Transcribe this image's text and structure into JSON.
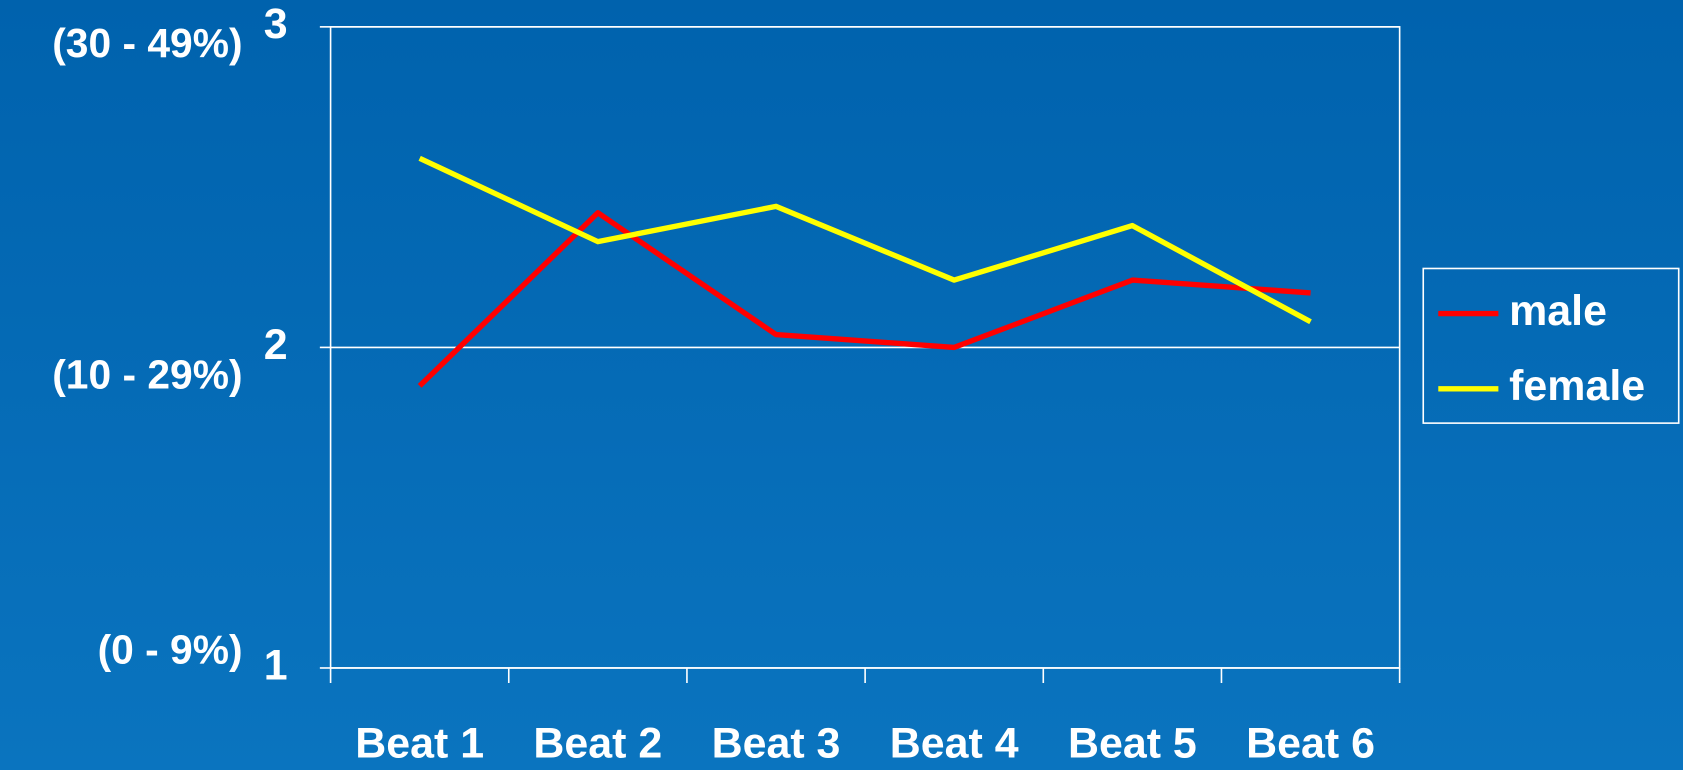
{
  "chart_data": {
    "type": "line",
    "categories": [
      "Beat 1",
      "Beat 2",
      "Beat 3",
      "Beat 4",
      "Beat 5",
      "Beat 6"
    ],
    "series": [
      {
        "name": "male",
        "color": "#ff0000",
        "values": [
          1.88,
          2.42,
          2.04,
          2.0,
          2.21,
          2.17
        ]
      },
      {
        "name": "female",
        "color": "#ffff00",
        "values": [
          2.59,
          2.33,
          2.44,
          2.21,
          2.38,
          2.08
        ]
      }
    ],
    "ylim": [
      1,
      3
    ],
    "yticks": [
      1,
      2,
      3
    ],
    "annotations": [
      "(0 - 9%)",
      "(10 - 29%)",
      "(30 - 49%)"
    ],
    "grid": true,
    "legend": "right"
  }
}
